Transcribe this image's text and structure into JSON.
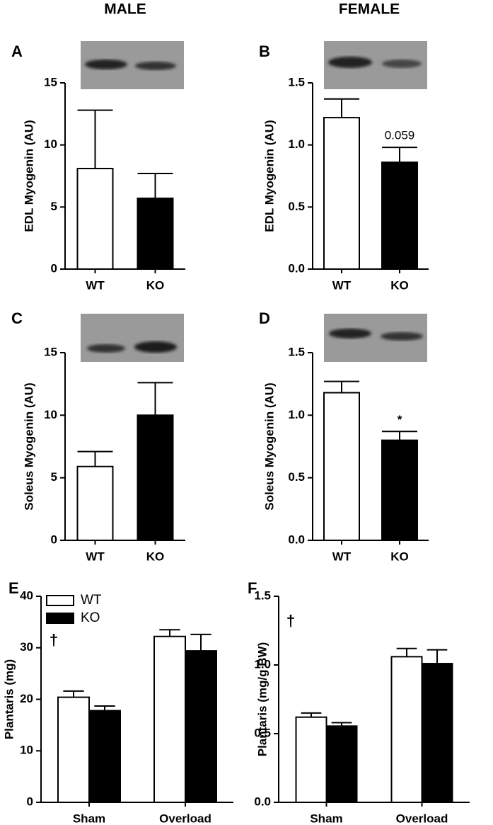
{
  "headers": [
    "MALE",
    "FEMALE"
  ],
  "chart_data": [
    {
      "type": "bar",
      "panel": "A",
      "ylabel": "EDL Myogenin (AU)",
      "categories": [
        "WT",
        "KO"
      ],
      "values": [
        8.1,
        5.7
      ],
      "errors": [
        4.7,
        2.0
      ],
      "colors": [
        "#ffffff",
        "#000000"
      ],
      "ylim": [
        0,
        15
      ],
      "yticks": [
        0,
        5,
        10,
        15
      ]
    },
    {
      "type": "bar",
      "panel": "B",
      "ylabel": "EDL Myogenin (AU)",
      "categories": [
        "WT",
        "KO"
      ],
      "values": [
        1.22,
        0.86
      ],
      "errors": [
        0.15,
        0.12
      ],
      "colors": [
        "#ffffff",
        "#000000"
      ],
      "ylim": [
        0,
        1.5
      ],
      "yticks": [
        {
          "value": 0,
          "label": "0.0"
        },
        0.5,
        {
          "value": 1,
          "label": "1.0"
        },
        1.5
      ],
      "annotations": [
        {
          "text": "0.059",
          "x": "KO"
        }
      ]
    },
    {
      "type": "bar",
      "panel": "C",
      "ylabel": "Soleus Myogenin (AU)",
      "categories": [
        "WT",
        "KO"
      ],
      "values": [
        5.9,
        10.0
      ],
      "errors": [
        1.2,
        2.6
      ],
      "colors": [
        "#ffffff",
        "#000000"
      ],
      "ylim": [
        0,
        15
      ],
      "yticks": [
        0,
        5,
        10,
        15
      ]
    },
    {
      "type": "bar",
      "panel": "D",
      "ylabel": "Soleus Myogenin (AU)",
      "categories": [
        "WT",
        "KO"
      ],
      "values": [
        1.18,
        0.8
      ],
      "errors": [
        0.09,
        0.07
      ],
      "colors": [
        "#ffffff",
        "#000000"
      ],
      "ylim": [
        0,
        1.5
      ],
      "yticks": [
        {
          "value": 0,
          "label": "0.0"
        },
        0.5,
        {
          "value": 1,
          "label": "1.0"
        },
        1.5
      ],
      "annotations": [
        {
          "text": "*",
          "x": "KO"
        }
      ]
    },
    {
      "type": "grouped_bar",
      "panel": "E",
      "ylabel": "Plantaris (mg)",
      "categories": [
        "Sham",
        "Overload"
      ],
      "series": [
        {
          "name": "WT",
          "color": "#ffffff",
          "values": [
            20.4,
            32.2
          ],
          "errors": [
            1.2,
            1.3
          ]
        },
        {
          "name": "KO",
          "color": "#000000",
          "values": [
            17.8,
            29.4
          ],
          "errors": [
            0.9,
            3.2
          ]
        }
      ],
      "ylim": [
        0,
        40
      ],
      "yticks": [
        0,
        10,
        20,
        30,
        40
      ],
      "legend": "upper left",
      "note": "†"
    },
    {
      "type": "grouped_bar",
      "panel": "F",
      "ylabel": "Plantaris (mg/g BW)",
      "categories": [
        "Sham",
        "Overload"
      ],
      "series": [
        {
          "name": "WT",
          "color": "#ffffff",
          "values": [
            0.62,
            1.06
          ],
          "errors": [
            0.03,
            0.06
          ]
        },
        {
          "name": "KO",
          "color": "#000000",
          "values": [
            0.555,
            1.01
          ],
          "errors": [
            0.025,
            0.1
          ]
        }
      ],
      "ylim": [
        0,
        1.5
      ],
      "yticks": [
        {
          "value": 0,
          "label": "0.0"
        },
        0.5,
        {
          "value": 1,
          "label": "1.0"
        },
        1.5
      ],
      "note": "†"
    }
  ]
}
